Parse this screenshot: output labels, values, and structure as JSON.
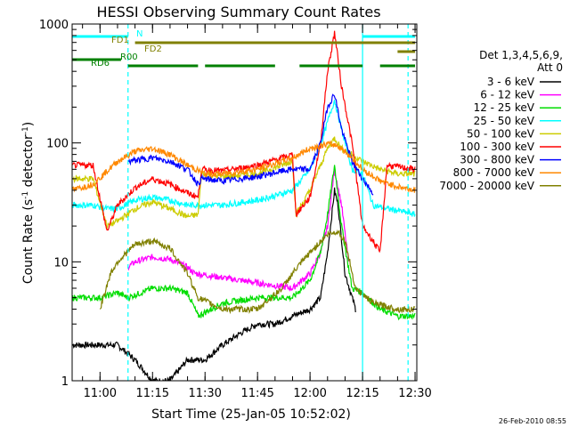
{
  "chart_data": {
    "type": "line",
    "title": "HESSI Observing Summary Count Rates",
    "xlabel": "Start Time (25-Jan-05 10:52:02)",
    "ylabel_main": "Count Rate (s",
    "ylabel_sup1": "-1",
    "ylabel_mid": " detector",
    "ylabel_sup2": "-1",
    "ylabel_end": ")",
    "y_scale": "log",
    "ylim": [
      1,
      1000
    ],
    "xlim": [
      "10:52:02",
      "12:30:30"
    ],
    "x_ticks": [
      "11:00",
      "11:15",
      "11:30",
      "11:45",
      "12:00",
      "12:15",
      "12:30"
    ],
    "y_ticks": [
      "1",
      "10",
      "100",
      "1000"
    ],
    "legend_header": "Det 1,3,4,5,6,9,",
    "legend_header2": "Att 0",
    "legend_position": "right",
    "timestamp": "26-Feb-2010 08:55",
    "series": [
      {
        "name": "3 - 6 keV",
        "color": "#000000",
        "points": [
          [
            "10:52",
            2
          ],
          [
            "11:00",
            2
          ],
          [
            "11:05",
            2
          ],
          [
            "11:10",
            1.5
          ],
          [
            "11:15",
            1
          ],
          [
            "11:20",
            1
          ],
          [
            "11:25",
            1.5
          ],
          [
            "11:30",
            1.5
          ],
          [
            "11:35",
            2
          ],
          [
            "11:40",
            2.5
          ],
          [
            "11:45",
            3
          ],
          [
            "11:50",
            3
          ],
          [
            "11:55",
            3.5
          ],
          [
            "12:00",
            4
          ],
          [
            "12:03",
            5
          ],
          [
            "12:05",
            12
          ],
          [
            "12:07",
            40
          ],
          [
            "12:08",
            30
          ],
          [
            "12:10",
            8
          ],
          [
            "12:13",
            4
          ]
        ]
      },
      {
        "name": "6 - 12 keV",
        "color": "#ff00ff",
        "points": [
          [
            "11:08",
            9
          ],
          [
            "11:10",
            10
          ],
          [
            "11:15",
            11
          ],
          [
            "11:20",
            10.5
          ],
          [
            "11:25",
            9
          ],
          [
            "11:27",
            8
          ],
          [
            "11:55",
            6
          ],
          [
            "12:00",
            8
          ],
          [
            "12:03",
            12
          ],
          [
            "12:05",
            20
          ],
          [
            "12:07",
            60
          ],
          [
            "12:09",
            30
          ],
          [
            "12:11",
            10
          ]
        ]
      },
      {
        "name": "12 - 25 keV",
        "color": "#00dd00",
        "points": [
          [
            "10:52",
            5
          ],
          [
            "11:00",
            5
          ],
          [
            "11:05",
            5.5
          ],
          [
            "11:08",
            5
          ],
          [
            "11:15",
            6
          ],
          [
            "11:20",
            6
          ],
          [
            "11:25",
            5.5
          ],
          [
            "11:28",
            3.5
          ],
          [
            "11:35",
            4.5
          ],
          [
            "11:45",
            5
          ],
          [
            "11:50",
            5
          ],
          [
            "11:55",
            5
          ],
          [
            "12:00",
            7
          ],
          [
            "12:03",
            12
          ],
          [
            "12:05",
            25
          ],
          [
            "12:07",
            65
          ],
          [
            "12:09",
            20
          ],
          [
            "12:12",
            6
          ],
          [
            "12:15",
            5.5
          ],
          [
            "12:20",
            4
          ],
          [
            "12:25",
            3.5
          ],
          [
            "12:30",
            3.5
          ]
        ]
      },
      {
        "name": "25 - 50 keV",
        "color": "#00ffff",
        "points": [
          [
            "10:52",
            30
          ],
          [
            "10:58",
            30
          ],
          [
            "11:02",
            28
          ],
          [
            "11:05",
            28
          ],
          [
            "11:10",
            33
          ],
          [
            "11:15",
            35
          ],
          [
            "11:20",
            33
          ],
          [
            "11:25",
            30
          ],
          [
            "11:28",
            30
          ],
          [
            "11:35",
            30
          ],
          [
            "11:45",
            33
          ],
          [
            "11:50",
            36
          ],
          [
            "11:55",
            40
          ],
          [
            "12:00",
            60
          ],
          [
            "12:03",
            95
          ],
          [
            "12:05",
            150
          ],
          [
            "12:07",
            230
          ],
          [
            "12:09",
            130
          ],
          [
            "12:12",
            60
          ],
          [
            "12:15",
            55
          ],
          [
            "12:18",
            30
          ],
          [
            "12:22",
            28
          ],
          [
            "12:25",
            27
          ],
          [
            "12:30",
            25
          ]
        ]
      },
      {
        "name": "50 - 100 keV",
        "color": "#cccc00",
        "points": [
          [
            "10:52",
            50
          ],
          [
            "10:58",
            50
          ],
          [
            "11:02",
            20
          ],
          [
            "11:05",
            22
          ],
          [
            "11:10",
            28
          ],
          [
            "11:15",
            32
          ],
          [
            "11:20",
            28
          ],
          [
            "11:25",
            24
          ],
          [
            "11:28",
            25
          ],
          [
            "11:29",
            55
          ],
          [
            "11:35",
            52
          ],
          [
            "11:45",
            55
          ],
          [
            "11:52",
            65
          ],
          [
            "11:55",
            70
          ],
          [
            "11:56",
            25
          ],
          [
            "12:00",
            40
          ],
          [
            "12:03",
            65
          ],
          [
            "12:05",
            90
          ],
          [
            "12:07",
            110
          ],
          [
            "12:09",
            90
          ],
          [
            "12:12",
            80
          ],
          [
            "12:15",
            70
          ],
          [
            "12:20",
            60
          ],
          [
            "12:25",
            55
          ],
          [
            "12:30",
            55
          ]
        ]
      },
      {
        "name": "100 - 300 keV",
        "color": "#ff0000",
        "points": [
          [
            "10:52",
            65
          ],
          [
            "10:58",
            65
          ],
          [
            "11:02",
            18
          ],
          [
            "11:05",
            30
          ],
          [
            "11:10",
            42
          ],
          [
            "11:15",
            50
          ],
          [
            "11:20",
            45
          ],
          [
            "11:25",
            38
          ],
          [
            "11:28",
            35
          ],
          [
            "11:29",
            60
          ],
          [
            "11:35",
            58
          ],
          [
            "11:45",
            65
          ],
          [
            "11:52",
            75
          ],
          [
            "11:55",
            80
          ],
          [
            "11:56",
            25
          ],
          [
            "12:00",
            35
          ],
          [
            "12:03",
            100
          ],
          [
            "12:05",
            400
          ],
          [
            "12:07",
            850
          ],
          [
            "12:09",
            300
          ],
          [
            "12:12",
            100
          ],
          [
            "12:15",
            20
          ],
          [
            "12:18",
            15
          ],
          [
            "12:20",
            12
          ],
          [
            "12:22",
            65
          ],
          [
            "12:25",
            63
          ],
          [
            "12:30",
            60
          ]
        ]
      },
      {
        "name": "300 - 800 keV",
        "color": "#0000ff",
        "points": [
          [
            "11:08",
            70
          ],
          [
            "11:15",
            75
          ],
          [
            "11:20",
            70
          ],
          [
            "11:25",
            60
          ],
          [
            "11:28",
            45
          ],
          [
            "11:29",
            50
          ],
          [
            "11:35",
            48
          ],
          [
            "11:45",
            52
          ],
          [
            "11:52",
            58
          ],
          [
            "11:55",
            60
          ],
          [
            "12:00",
            60
          ],
          [
            "12:03",
            100
          ],
          [
            "12:05",
            200
          ],
          [
            "12:07",
            260
          ],
          [
            "12:09",
            130
          ],
          [
            "12:12",
            70
          ],
          [
            "12:15",
            50
          ],
          [
            "12:18",
            38
          ]
        ]
      },
      {
        "name": "800 - 7000 keV",
        "color": "#ff8800",
        "points": [
          [
            "10:52",
            40
          ],
          [
            "10:58",
            45
          ],
          [
            "11:05",
            70
          ],
          [
            "11:10",
            85
          ],
          [
            "11:15",
            90
          ],
          [
            "11:20",
            80
          ],
          [
            "11:25",
            65
          ],
          [
            "11:30",
            55
          ],
          [
            "11:35",
            55
          ],
          [
            "11:45",
            60
          ],
          [
            "11:52",
            70
          ],
          [
            "11:55",
            75
          ],
          [
            "12:00",
            90
          ],
          [
            "12:05",
            98
          ],
          [
            "12:08",
            95
          ],
          [
            "12:12",
            75
          ],
          [
            "12:15",
            60
          ],
          [
            "12:20",
            48
          ],
          [
            "12:25",
            43
          ],
          [
            "12:30",
            40
          ]
        ]
      },
      {
        "name": "7000 - 20000 keV",
        "color": "#808000",
        "points": [
          [
            "11:00",
            4
          ],
          [
            "11:03",
            8
          ],
          [
            "11:05",
            10
          ],
          [
            "11:10",
            14
          ],
          [
            "11:15",
            15
          ],
          [
            "11:20",
            13
          ],
          [
            "11:25",
            8
          ],
          [
            "11:28",
            5
          ],
          [
            "11:35",
            4
          ],
          [
            "11:45",
            4
          ],
          [
            "11:52",
            6
          ],
          [
            "11:55",
            8
          ],
          [
            "12:00",
            12
          ],
          [
            "12:05",
            17
          ],
          [
            "12:08",
            18
          ],
          [
            "12:10",
            15
          ],
          [
            "12:13",
            6
          ],
          [
            "12:18",
            4.5
          ],
          [
            "12:25",
            4
          ],
          [
            "12:30",
            4
          ]
        ]
      }
    ],
    "state_bars": [
      {
        "label": "N",
        "color": "#00ffff",
        "level": 0,
        "segments": [
          [
            "10:52",
            "11:08"
          ],
          [
            "12:15",
            "12:30"
          ]
        ]
      },
      {
        "label": "FD1",
        "color": "#808000",
        "level": 1,
        "segments": [
          [
            "11:10",
            "12:30"
          ]
        ]
      },
      {
        "label": "FD2",
        "color": "#808000",
        "level": 2,
        "segments": [
          [
            "12:25",
            "12:30"
          ]
        ]
      },
      {
        "label": "R00",
        "color": "#008000",
        "level": 3,
        "segments": [
          [
            "10:52",
            "11:06"
          ]
        ]
      },
      {
        "label": "RD6",
        "color": "#008000",
        "level": 4,
        "segments": [
          [
            "11:08",
            "11:28"
          ],
          [
            "11:30",
            "11:50"
          ],
          [
            "11:57",
            "12:15"
          ],
          [
            "12:20",
            "12:30"
          ]
        ]
      }
    ],
    "vlines": [
      {
        "time": "11:08",
        "style": "dashed",
        "color": "#00ffff"
      },
      {
        "time": "12:15",
        "style": "solid",
        "color": "#00ffff"
      },
      {
        "time": "12:28",
        "style": "dashed",
        "color": "#00ffff"
      }
    ]
  }
}
